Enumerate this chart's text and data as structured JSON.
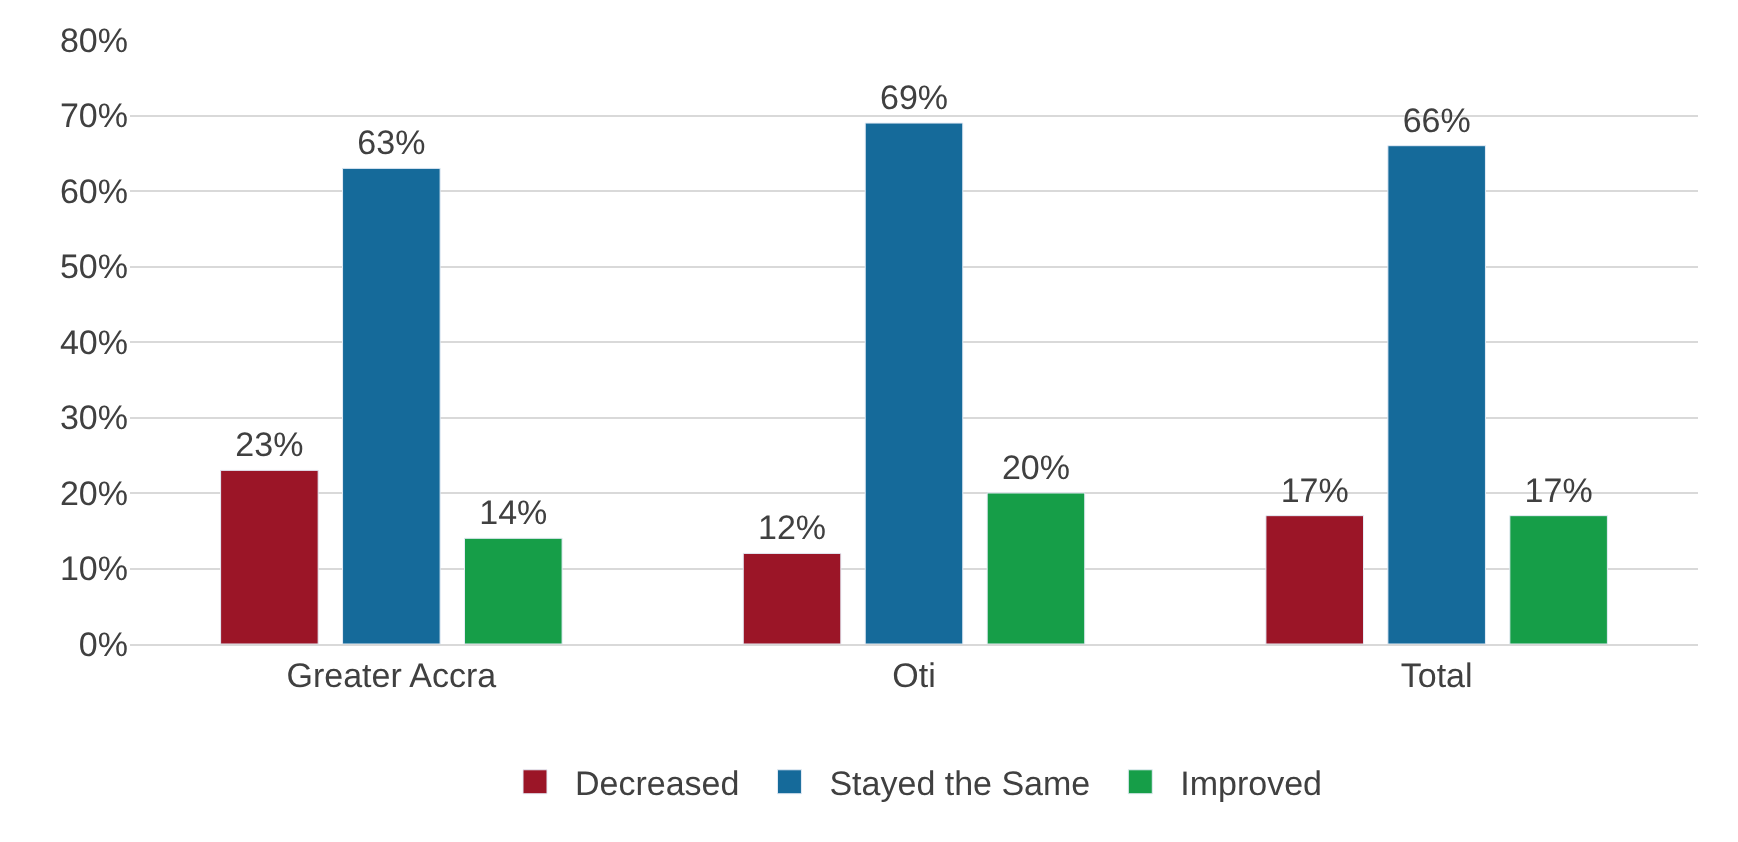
{
  "chart_data": {
    "type": "bar",
    "categories": [
      "Greater Accra",
      "Oti",
      "Total"
    ],
    "series": [
      {
        "name": "Decreased",
        "color": "#9b1527",
        "values": [
          23,
          12,
          17
        ],
        "value_labels": [
          "23%",
          "12%",
          "17%"
        ]
      },
      {
        "name": "Stayed the Same",
        "color": "#156a9a",
        "values": [
          63,
          69,
          66
        ],
        "value_labels": [
          "63%",
          "69%",
          "66%"
        ]
      },
      {
        "name": "Improved",
        "color": "#169e48",
        "values": [
          14,
          20,
          17
        ],
        "value_labels": [
          "14%",
          "20%",
          "17%"
        ]
      }
    ],
    "ylim": [
      0,
      80
    ],
    "yticks": [
      {
        "value": 0,
        "label": "0%"
      },
      {
        "value": 10,
        "label": "10%"
      },
      {
        "value": 20,
        "label": "20%"
      },
      {
        "value": 30,
        "label": "30%"
      },
      {
        "value": 40,
        "label": "40%"
      },
      {
        "value": 50,
        "label": "50%"
      },
      {
        "value": 60,
        "label": "60%"
      },
      {
        "value": 70,
        "label": "70%"
      },
      {
        "value": 80,
        "label": "80%"
      }
    ],
    "grid": "y",
    "legend": "bottom"
  }
}
